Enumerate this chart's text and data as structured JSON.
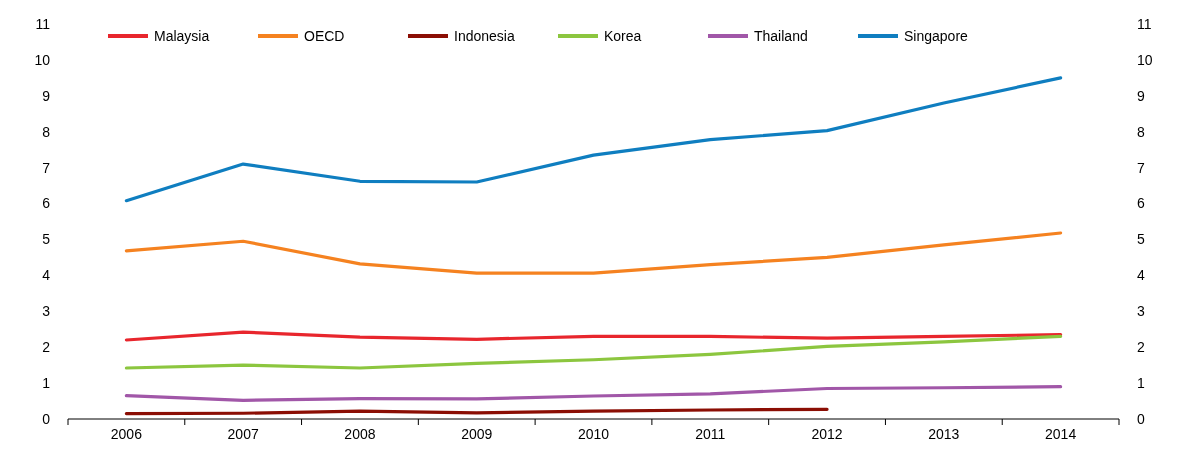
{
  "chart_data": {
    "type": "line",
    "categories": [
      "2006",
      "2007",
      "2008",
      "2009",
      "2010",
      "2011",
      "2012",
      "2013",
      "2014"
    ],
    "series": [
      {
        "name": "Malaysia",
        "color": "#e8262d",
        "values": [
          2.2,
          2.42,
          2.28,
          2.22,
          2.3,
          2.3,
          2.25,
          2.3,
          2.35
        ]
      },
      {
        "name": "OECD",
        "color": "#f58220",
        "values": [
          4.68,
          4.95,
          4.32,
          4.06,
          4.06,
          4.3,
          4.5,
          4.85,
          5.18
        ]
      },
      {
        "name": "Indonesia",
        "color": "#8b0e04",
        "values": [
          0.15,
          0.16,
          0.22,
          0.17,
          0.22,
          0.25,
          0.27,
          null,
          null
        ]
      },
      {
        "name": "Korea",
        "color": "#8cc63f",
        "values": [
          1.42,
          1.5,
          1.42,
          1.55,
          1.65,
          1.8,
          2.02,
          2.15,
          2.3
        ]
      },
      {
        "name": "Thailand",
        "color": "#a157a8",
        "values": [
          0.65,
          0.52,
          0.57,
          0.56,
          0.64,
          0.7,
          0.85,
          0.87,
          0.9
        ]
      },
      {
        "name": "Singapore",
        "color": "#0f7ec0",
        "values": [
          6.08,
          7.1,
          6.62,
          6.6,
          7.35,
          7.78,
          8.03,
          8.8,
          9.5
        ]
      }
    ],
    "ylim": [
      0,
      11
    ],
    "yticks": [
      0,
      1,
      2,
      3,
      4,
      5,
      6,
      7,
      8,
      9,
      10,
      11
    ],
    "y2lim": [
      0,
      11
    ],
    "y2ticks": [
      0,
      1,
      2,
      3,
      4,
      5,
      6,
      7,
      8,
      9,
      10,
      11
    ],
    "grid": false,
    "legend": "top left",
    "marker": "none",
    "line_style": "solid"
  }
}
